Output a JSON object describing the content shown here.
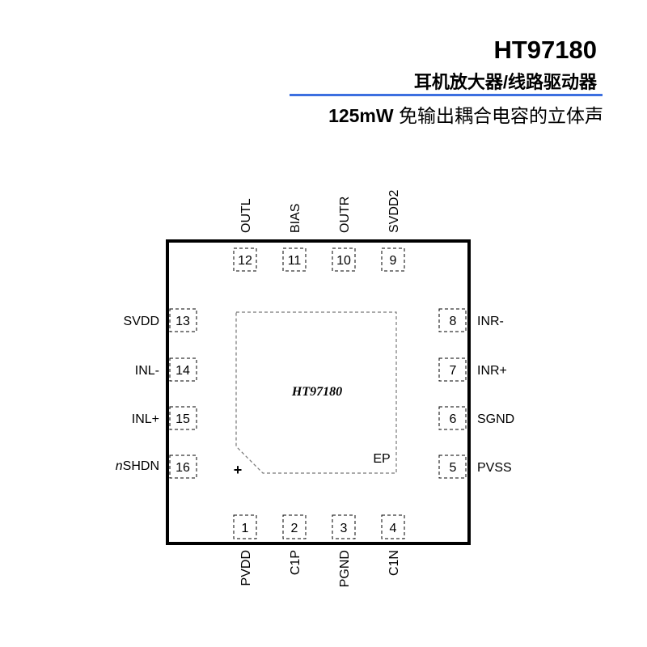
{
  "header": {
    "part_number": "HT97180",
    "subtitle": "耳机放大器/线路驱动器",
    "tagline_power": "125mW",
    "tagline_text": "免输出耦合电容的立体声",
    "rule_color": "#3c6fe0"
  },
  "chip": {
    "name": "HT97180",
    "exposed_pad_label": "EP",
    "pin1_marker": "+"
  },
  "pins": {
    "top": [
      {
        "num": "12",
        "name": "OUTL"
      },
      {
        "num": "11",
        "name": "BIAS"
      },
      {
        "num": "10",
        "name": "OUTR"
      },
      {
        "num": "9",
        "name": "SVDD2"
      }
    ],
    "left": [
      {
        "num": "13",
        "name": "SVDD"
      },
      {
        "num": "14",
        "name": "INL-"
      },
      {
        "num": "15",
        "name": "INL+"
      },
      {
        "num": "16",
        "name": "nSHDN",
        "prefix_italic": "n",
        "rest": "SHDN"
      }
    ],
    "right": [
      {
        "num": "8",
        "name": "INR-"
      },
      {
        "num": "7",
        "name": "INR+"
      },
      {
        "num": "6",
        "name": "SGND"
      },
      {
        "num": "5",
        "name": "PVSS"
      }
    ],
    "bottom": [
      {
        "num": "1",
        "name": "PVDD"
      },
      {
        "num": "2",
        "name": "C1P"
      },
      {
        "num": "3",
        "name": "PGND"
      },
      {
        "num": "4",
        "name": "C1N"
      }
    ]
  }
}
